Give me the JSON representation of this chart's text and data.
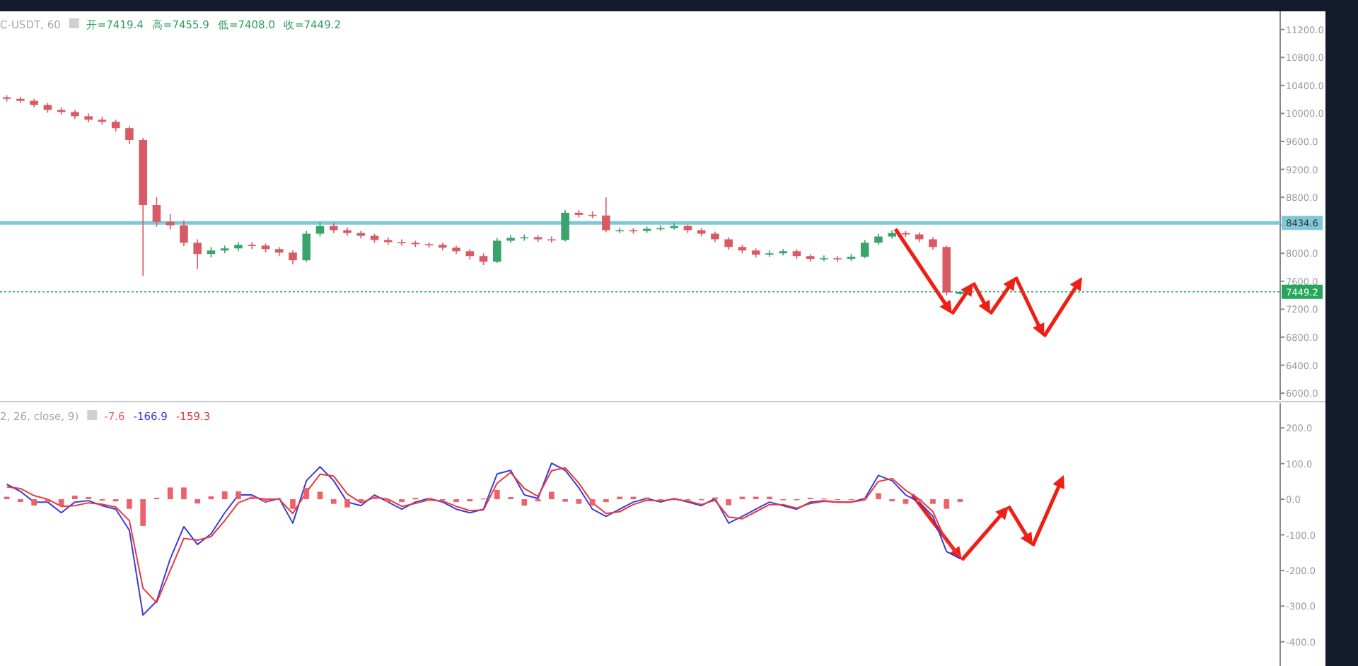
{
  "chart_data": [
    {
      "type": "candlestick",
      "title": "C-USDT, 60",
      "annotations": [
        "开=7419.4",
        "高=7455.9",
        "低=7408.0",
        "收=7449.2"
      ],
      "categories": [
        null,
        null,
        null,
        null,
        null,
        null,
        null,
        null,
        null,
        null,
        null,
        null,
        null,
        null,
        null,
        null,
        null,
        null,
        null,
        null,
        null,
        null,
        null,
        null,
        null,
        null,
        null,
        null,
        null,
        null,
        null,
        null,
        null,
        null,
        null,
        null,
        null,
        null,
        null,
        null,
        null,
        null,
        null,
        null,
        null,
        null,
        null,
        null,
        null,
        null,
        null,
        null,
        null,
        null,
        null,
        null,
        null,
        null,
        null,
        null,
        null,
        null,
        null,
        null,
        null,
        null,
        null,
        null,
        null,
        null,
        null,
        null,
        null,
        null,
        null,
        null,
        null,
        null,
        null,
        null,
        null,
        null,
        null,
        null,
        null,
        null,
        null,
        null,
        null,
        null,
        null,
        null,
        null,
        null
      ],
      "ohlc": [
        [
          10230,
          10260,
          10170,
          10209
        ],
        [
          10209,
          10240,
          10150,
          10180
        ],
        [
          10180,
          10210,
          10090,
          10120
        ],
        [
          10120,
          10150,
          10010,
          10050
        ],
        [
          10050,
          10090,
          9980,
          10020
        ],
        [
          10020,
          10050,
          9920,
          9960
        ],
        [
          9960,
          10000,
          9870,
          9910
        ],
        [
          9910,
          9950,
          9840,
          9880
        ],
        [
          9880,
          9910,
          9740,
          9790
        ],
        [
          9790,
          9820,
          9560,
          9620
        ],
        [
          9620,
          9650,
          7680,
          8690
        ],
        [
          8690,
          8800,
          8380,
          8450
        ],
        [
          8450,
          8560,
          8340,
          8400
        ],
        [
          8400,
          8470,
          8100,
          8150
        ],
        [
          8150,
          8200,
          7780,
          7990
        ],
        [
          7990,
          8090,
          7940,
          8040
        ],
        [
          8040,
          8110,
          8000,
          8070
        ],
        [
          8070,
          8160,
          8030,
          8120
        ],
        [
          8120,
          8160,
          8060,
          8110
        ],
        [
          8110,
          8140,
          8010,
          8060
        ],
        [
          8060,
          8090,
          7960,
          8010
        ],
        [
          8010,
          8040,
          7840,
          7900
        ],
        [
          7900,
          8320,
          7880,
          8280
        ],
        [
          8280,
          8440,
          8240,
          8390
        ],
        [
          8390,
          8430,
          8290,
          8330
        ],
        [
          8330,
          8370,
          8250,
          8290
        ],
        [
          8290,
          8320,
          8210,
          8250
        ],
        [
          8250,
          8280,
          8150,
          8190
        ],
        [
          8190,
          8230,
          8120,
          8160
        ],
        [
          8160,
          8200,
          8110,
          8150
        ],
        [
          8150,
          8180,
          8090,
          8130
        ],
        [
          8130,
          8160,
          8080,
          8120
        ],
        [
          8120,
          8150,
          8040,
          8080
        ],
        [
          8080,
          8110,
          7990,
          8030
        ],
        [
          8030,
          8060,
          7910,
          7960
        ],
        [
          7960,
          8000,
          7830,
          7880
        ],
        [
          7880,
          8220,
          7860,
          8180
        ],
        [
          8180,
          8260,
          8150,
          8220
        ],
        [
          8220,
          8270,
          8180,
          8230
        ],
        [
          8230,
          8260,
          8160,
          8200
        ],
        [
          8200,
          8240,
          8150,
          8190
        ],
        [
          8190,
          8620,
          8170,
          8580
        ],
        [
          8580,
          8620,
          8510,
          8550
        ],
        [
          8550,
          8600,
          8500,
          8540
        ],
        [
          8540,
          8800,
          8300,
          8330
        ],
        [
          8330,
          8370,
          8290,
          8330
        ],
        [
          8330,
          8360,
          8280,
          8320
        ],
        [
          8320,
          8380,
          8290,
          8350
        ],
        [
          8350,
          8400,
          8320,
          8360
        ],
        [
          8360,
          8430,
          8340,
          8390
        ],
        [
          8390,
          8410,
          8290,
          8330
        ],
        [
          8330,
          8360,
          8240,
          8280
        ],
        [
          8280,
          8310,
          8160,
          8200
        ],
        [
          8200,
          8230,
          8050,
          8090
        ],
        [
          8090,
          8120,
          8000,
          8040
        ],
        [
          8040,
          8070,
          7940,
          7980
        ],
        [
          7980,
          8040,
          7950,
          8000
        ],
        [
          8000,
          8060,
          7970,
          8030
        ],
        [
          8030,
          8060,
          7920,
          7960
        ],
        [
          7960,
          7990,
          7880,
          7920
        ],
        [
          7920,
          7970,
          7890,
          7930
        ],
        [
          7930,
          7960,
          7880,
          7920
        ],
        [
          7920,
          7990,
          7890,
          7950
        ],
        [
          7950,
          8190,
          7930,
          8150
        ],
        [
          8150,
          8280,
          8120,
          8240
        ],
        [
          8240,
          8330,
          8210,
          8290
        ],
        [
          8290,
          8320,
          8230,
          8270
        ],
        [
          8270,
          8300,
          8160,
          8200
        ],
        [
          8200,
          8230,
          8050,
          8090
        ],
        [
          8090,
          8110,
          7400,
          7440
        ],
        [
          7419.4,
          7455.9,
          7408.0,
          7449.2
        ],
        null,
        null,
        null,
        null,
        null,
        null,
        null,
        null,
        null,
        null,
        null,
        null,
        null,
        null,
        null,
        null,
        null,
        null,
        null,
        null,
        null,
        null,
        null
      ],
      "ylim": [
        5900,
        11460
      ],
      "yticks": [
        {
          "value": 6000,
          "label": "6000.0"
        },
        {
          "value": 6400,
          "label": "6400.0"
        },
        {
          "value": 6800,
          "label": "6800.0"
        },
        {
          "value": 7200,
          "label": "7200.0"
        },
        {
          "value": 7600,
          "label": "7600.0"
        },
        {
          "value": 8000,
          "label": "8000.0"
        },
        {
          "value": 8400,
          "label": null
        },
        {
          "value": 8800,
          "label": "8800.0"
        },
        {
          "value": 9200,
          "label": "9200.0"
        },
        {
          "value": 9600,
          "label": "9600.0"
        },
        {
          "value": 10000,
          "label": "10000.0"
        },
        {
          "value": 10400,
          "label": "10400.0"
        },
        {
          "value": 10800,
          "label": "10800.0"
        },
        {
          "value": 11200,
          "label": "11200.0"
        }
      ],
      "ref_lines": [
        {
          "axis": "y",
          "value": 8434.6,
          "label": "8434.6",
          "color": "#7ec8d8"
        },
        {
          "axis": "y",
          "value": 7449.2,
          "label": "7449.2",
          "color": "#26a65b",
          "line_style": "dotted"
        }
      ],
      "tick_labels": "y"
    },
    {
      "type": "line",
      "title": "2, 26, close, 9)",
      "legend": "top left",
      "categories": [
        null,
        null,
        null,
        null,
        null,
        null,
        null,
        null,
        null,
        null,
        null,
        null,
        null,
        null,
        null,
        null,
        null,
        null,
        null,
        null,
        null,
        null,
        null,
        null,
        null,
        null,
        null,
        null,
        null,
        null,
        null,
        null,
        null,
        null,
        null,
        null,
        null,
        null,
        null,
        null,
        null,
        null,
        null,
        null,
        null,
        null,
        null,
        null,
        null,
        null,
        null,
        null,
        null,
        null,
        null,
        null,
        null,
        null,
        null,
        null,
        null,
        null,
        null,
        null,
        null,
        null,
        null,
        null,
        null,
        null,
        null,
        null,
        null,
        null,
        null,
        null,
        null,
        null,
        null,
        null,
        null,
        null,
        null,
        null,
        null,
        null,
        null,
        null,
        null,
        null,
        null,
        null,
        null,
        null
      ],
      "series": [
        {
          "name": "-7.6",
          "type": "bar",
          "color": "#f0606a",
          "values": [
            7,
            -8,
            -18,
            -8,
            -18,
            10,
            6,
            -4,
            -6,
            -27,
            -75,
            4,
            33,
            33,
            -12,
            8,
            22,
            22,
            7,
            -8,
            2,
            -27,
            32,
            21,
            -13,
            -23,
            -8,
            7,
            -8,
            -8,
            4,
            4,
            -3,
            -8,
            -6,
            2,
            26,
            6,
            -18,
            -6,
            21,
            -7,
            -13,
            -18,
            -8,
            7,
            7,
            5,
            -3,
            2,
            -3,
            -3,
            5,
            -17,
            7,
            7,
            7,
            -3,
            -3,
            4,
            2,
            0,
            0,
            4,
            17,
            -6,
            -13,
            -8,
            -13,
            -27,
            -7.6,
            null,
            null,
            null,
            null,
            null,
            null,
            null,
            null,
            null,
            null,
            null,
            null,
            null,
            null,
            null,
            null,
            null,
            null,
            null,
            null,
            null,
            null,
            null
          ]
        },
        {
          "name": "-166.9",
          "type": "line",
          "color": "#3b3bdc",
          "values": [
            42,
            22,
            -8,
            -8,
            -38,
            -8,
            -4,
            -18,
            -28,
            -87,
            -325,
            -286,
            -167,
            -77,
            -127,
            -97,
            -38,
            12,
            12,
            -8,
            2,
            -67,
            52,
            91,
            52,
            -8,
            -18,
            12,
            -8,
            -28,
            -8,
            2,
            -8,
            -28,
            -38,
            -28,
            71,
            81,
            12,
            2,
            101,
            81,
            32,
            -28,
            -48,
            -28,
            -8,
            2,
            -8,
            2,
            -8,
            -18,
            2,
            -67,
            -48,
            -28,
            -8,
            -18,
            -28,
            -8,
            -4,
            -8,
            -8,
            2,
            67,
            52,
            12,
            -8,
            -48,
            -147,
            -166.9,
            null,
            null,
            null,
            null,
            null,
            null,
            null,
            null,
            null,
            null,
            null,
            null,
            null,
            null,
            null,
            null,
            null,
            null,
            null,
            null,
            null,
            null,
            null
          ]
        },
        {
          "name": "-159.3",
          "type": "line",
          "color": "#e83a3a",
          "values": [
            35,
            30,
            10,
            0,
            -20,
            -18,
            -10,
            -14,
            -22,
            -60,
            -250,
            -290,
            -200,
            -110,
            -115,
            -105,
            -60,
            -10,
            5,
            0,
            0,
            -40,
            20,
            70,
            65,
            15,
            -10,
            5,
            0,
            -20,
            -12,
            -2,
            -5,
            -20,
            -32,
            -30,
            45,
            75,
            30,
            8,
            80,
            88,
            45,
            -10,
            -40,
            -35,
            -15,
            -3,
            -5,
            0,
            -5,
            -15,
            -3,
            -50,
            -55,
            -35,
            -15,
            -15,
            -25,
            -12,
            -6,
            -8,
            -8,
            -2,
            50,
            58,
            25,
            0,
            -35,
            -120,
            -159.3,
            null,
            null,
            null,
            null,
            null,
            null,
            null,
            null,
            null,
            null,
            null,
            null,
            null,
            null,
            null,
            null,
            null,
            null,
            null,
            null,
            null,
            null,
            null
          ]
        }
      ],
      "ylim": [
        -468,
        270
      ],
      "yticks": [
        {
          "value": -400,
          "label": "-400.0"
        },
        {
          "value": -300,
          "label": "-300.0"
        },
        {
          "value": -200,
          "label": "-200.0"
        },
        {
          "value": -100,
          "label": "-100.0"
        },
        {
          "value": 0,
          "label": "0.0"
        },
        {
          "value": 100,
          "label": "100.0"
        },
        {
          "value": 200,
          "label": "200.0"
        }
      ],
      "tick_labels": "y"
    }
  ]
}
